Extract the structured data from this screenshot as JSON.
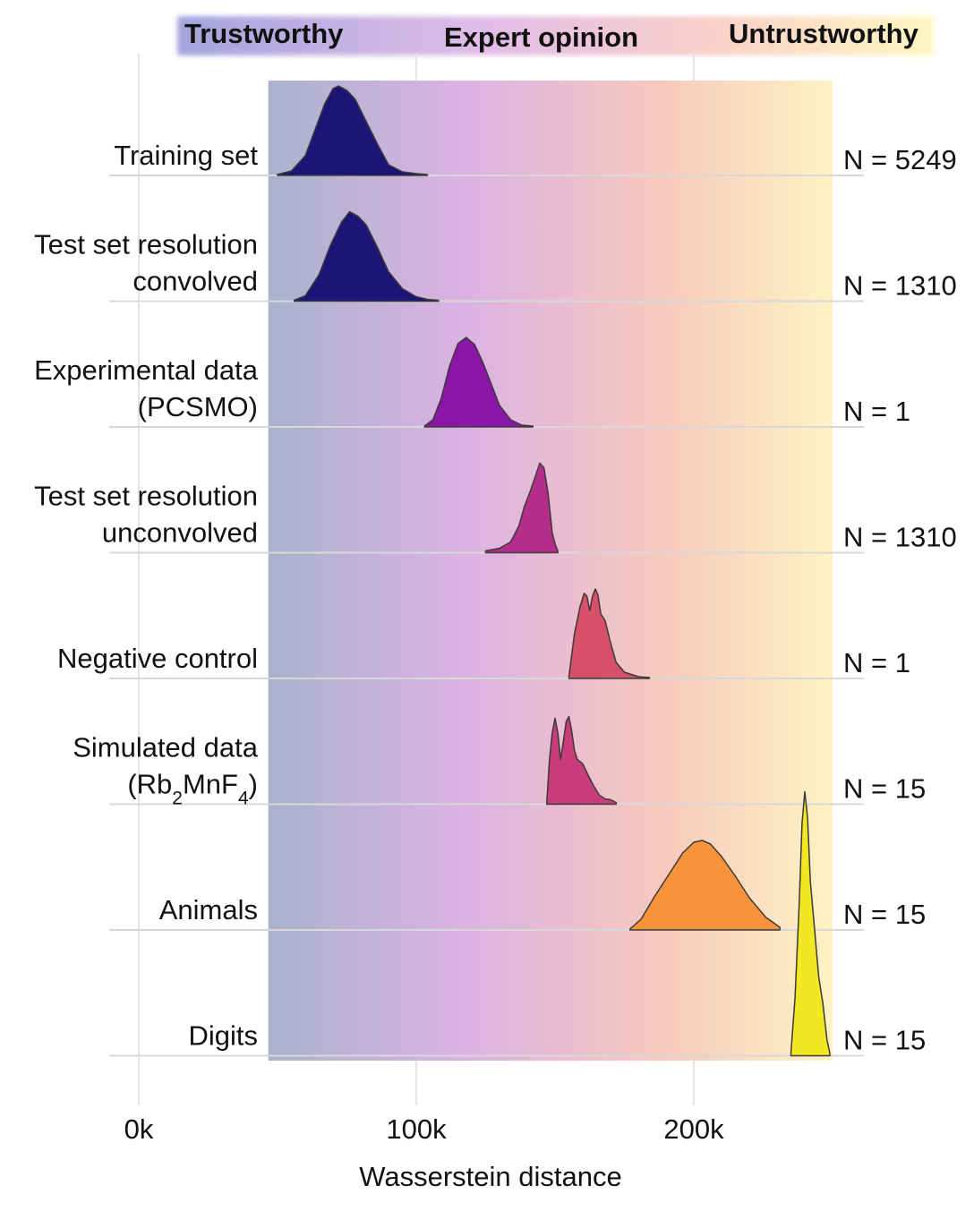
{
  "chart_data": {
    "type": "ridgeline",
    "title": "",
    "xlabel": "Wasserstein distance",
    "ylabel": "",
    "xlim": [
      -5000,
      265000
    ],
    "x_ticks": [
      {
        "value": 0,
        "label": "0k"
      },
      {
        "value": 100000,
        "label": "100k"
      },
      {
        "value": 200000,
        "label": "200k"
      }
    ],
    "grid": true,
    "trust_band": {
      "x_range": [
        47000,
        249000
      ],
      "labels": [
        "Trustworthy",
        "Expert opinion",
        "Untrustworthy"
      ],
      "colors": [
        "#a9b2cc",
        "#dcb2e4",
        "#f7c9bd",
        "#fdf3c4"
      ]
    },
    "series": [
      {
        "label": "Training set",
        "label_lines": [
          "Training set"
        ],
        "n_label": "N = 5249",
        "color": "#1c1577",
        "points": [
          [
            50000,
            0.01
          ],
          [
            55000,
            0.05
          ],
          [
            60000,
            0.22
          ],
          [
            64000,
            0.55
          ],
          [
            67000,
            0.8
          ],
          [
            70000,
            0.97
          ],
          [
            72000,
            1.0
          ],
          [
            75000,
            0.95
          ],
          [
            78000,
            0.85
          ],
          [
            82000,
            0.6
          ],
          [
            86000,
            0.35
          ],
          [
            90000,
            0.12
          ],
          [
            95000,
            0.04
          ],
          [
            100000,
            0.02
          ],
          [
            104000,
            0.01
          ]
        ]
      },
      {
        "label": "Test set resolution convolved",
        "label_lines": [
          "Test set resolution",
          "convolved"
        ],
        "n_label": "N = 1310",
        "color": "#1c1577",
        "points": [
          [
            56000,
            0.01
          ],
          [
            60000,
            0.06
          ],
          [
            65000,
            0.3
          ],
          [
            69000,
            0.62
          ],
          [
            73000,
            0.88
          ],
          [
            76000,
            1.0
          ],
          [
            79000,
            0.95
          ],
          [
            82000,
            0.85
          ],
          [
            86000,
            0.6
          ],
          [
            90000,
            0.33
          ],
          [
            95000,
            0.14
          ],
          [
            100000,
            0.05
          ],
          [
            104000,
            0.02
          ],
          [
            108000,
            0.01
          ]
        ]
      },
      {
        "label": "Experimental data (PCSMO)",
        "label_lines": [
          "Experimental data",
          "(PCSMO)"
        ],
        "n_label": "N = 1",
        "color": "#8a16a6",
        "points": [
          [
            103000,
            0.01
          ],
          [
            106000,
            0.08
          ],
          [
            109000,
            0.32
          ],
          [
            112000,
            0.68
          ],
          [
            115000,
            0.93
          ],
          [
            118000,
            1.0
          ],
          [
            121000,
            0.92
          ],
          [
            124000,
            0.72
          ],
          [
            127000,
            0.48
          ],
          [
            130000,
            0.24
          ],
          [
            134000,
            0.08
          ],
          [
            138000,
            0.02
          ],
          [
            142000,
            0.01
          ]
        ]
      },
      {
        "label": "Test set resolution unconvolved",
        "label_lines": [
          "Test set resolution",
          "unconvolved"
        ],
        "n_label": "N = 1310",
        "color": "#b42d8a",
        "points": [
          [
            125000,
            0.02
          ],
          [
            130000,
            0.05
          ],
          [
            134000,
            0.12
          ],
          [
            137000,
            0.3
          ],
          [
            139000,
            0.52
          ],
          [
            141000,
            0.68
          ],
          [
            143000,
            0.86
          ],
          [
            144500,
            1.0
          ],
          [
            146000,
            0.95
          ],
          [
            147500,
            0.66
          ],
          [
            149000,
            0.22
          ],
          [
            150000,
            0.1
          ],
          [
            151000,
            0.02
          ]
        ]
      },
      {
        "label": "Negative control",
        "label_lines": [
          "Negative control"
        ],
        "n_label": "N = 1",
        "color": "#d6506a",
        "points": [
          [
            155000,
            0.02
          ],
          [
            157000,
            0.5
          ],
          [
            159000,
            0.8
          ],
          [
            160500,
            0.95
          ],
          [
            161500,
            0.92
          ],
          [
            162500,
            0.76
          ],
          [
            163500,
            0.92
          ],
          [
            164500,
            1.0
          ],
          [
            165500,
            0.93
          ],
          [
            166500,
            0.72
          ],
          [
            168000,
            0.65
          ],
          [
            170000,
            0.4
          ],
          [
            172000,
            0.18
          ],
          [
            175000,
            0.07
          ],
          [
            180000,
            0.02
          ],
          [
            184000,
            0.01
          ]
        ]
      },
      {
        "label": "Simulated data (Rb2MnF4)",
        "label_lines": [
          "Simulated data",
          "(Rb$2$MnF$4$)"
        ],
        "n_label": "N = 15",
        "color": "#c83c7c",
        "points": [
          [
            147000,
            0.01
          ],
          [
            148000,
            0.5
          ],
          [
            149000,
            0.8
          ],
          [
            150000,
            0.96
          ],
          [
            151000,
            0.8
          ],
          [
            152000,
            0.5
          ],
          [
            153000,
            0.7
          ],
          [
            154000,
            0.92
          ],
          [
            155000,
            0.98
          ],
          [
            156000,
            0.82
          ],
          [
            157000,
            0.6
          ],
          [
            158000,
            0.5
          ],
          [
            160000,
            0.45
          ],
          [
            162000,
            0.32
          ],
          [
            164000,
            0.2
          ],
          [
            166000,
            0.1
          ],
          [
            168000,
            0.06
          ],
          [
            170000,
            0.05
          ],
          [
            172000,
            0.02
          ]
        ]
      },
      {
        "label": "Animals",
        "label_lines": [
          "Animals"
        ],
        "n_label": "N = 15",
        "color": "#f7943b",
        "points": [
          [
            177000,
            0.01
          ],
          [
            181000,
            0.12
          ],
          [
            186000,
            0.38
          ],
          [
            191000,
            0.62
          ],
          [
            196000,
            0.86
          ],
          [
            200000,
            0.98
          ],
          [
            203000,
            1.0
          ],
          [
            206000,
            0.96
          ],
          [
            210000,
            0.82
          ],
          [
            215000,
            0.6
          ],
          [
            220000,
            0.36
          ],
          [
            226000,
            0.14
          ],
          [
            231000,
            0.03
          ]
        ]
      },
      {
        "label": "Digits",
        "label_lines": [
          "Digits"
        ],
        "n_label": "N = 15",
        "color": "#f2e720",
        "points": [
          [
            235000,
            0.01
          ],
          [
            236500,
            0.22
          ],
          [
            238000,
            0.58
          ],
          [
            239000,
            0.88
          ],
          [
            240000,
            1.0
          ],
          [
            241000,
            0.9
          ],
          [
            242000,
            0.66
          ],
          [
            243500,
            0.48
          ],
          [
            245000,
            0.3
          ],
          [
            246500,
            0.2
          ],
          [
            248000,
            0.06
          ],
          [
            249000,
            0.01
          ]
        ]
      }
    ]
  }
}
